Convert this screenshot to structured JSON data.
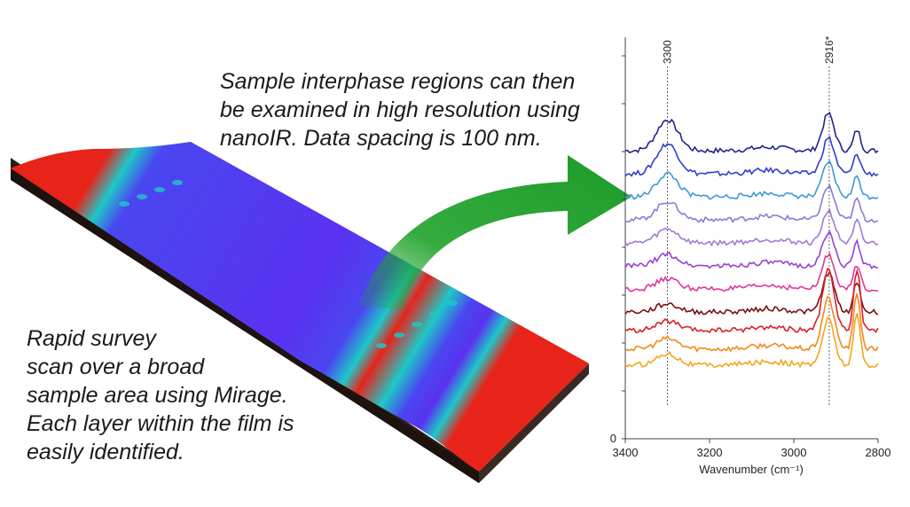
{
  "captions": {
    "top": [
      "Sample interphase regions can then",
      "be examined in high resolution using",
      "nanoIR. Data spacing is 100 nm."
    ],
    "left": [
      "Rapid survey",
      "scan over a broad",
      "sample area using Mirage.",
      "Each layer within the film is",
      "easily identified."
    ]
  },
  "colors": {
    "arrow": "#1fa22a",
    "map_red": "#e8231a",
    "map_blue": "#5a32f0",
    "map_cyan": "#1ec8c8",
    "block_side": "#2b1d17"
  },
  "chart_data": {
    "type": "line",
    "title": "",
    "xlabel": "Wavenumber (cm⁻¹)",
    "ylabel": "",
    "xlim": [
      3400,
      2800
    ],
    "x_reversed": true,
    "x_ticks": [
      "3400",
      "3200",
      "3000",
      "2800"
    ],
    "y_tick_label": "0",
    "peak_labels": [
      {
        "x": 3300,
        "label": "3300"
      },
      {
        "x": 2916,
        "label": "2916*"
      }
    ],
    "series": [
      {
        "color": "#24248c",
        "offset": 10.0,
        "peak3300": 1.35,
        "peak2916": 1.6,
        "peak2850": 0.9
      },
      {
        "color": "#2f3fc8",
        "offset": 9.0,
        "peak3300": 1.3,
        "peak2916": 1.55,
        "peak2850": 0.85
      },
      {
        "color": "#3c9ad8",
        "offset": 8.0,
        "peak3300": 1.0,
        "peak2916": 1.5,
        "peak2850": 0.9
      },
      {
        "color": "#8c7ad8",
        "offset": 7.0,
        "peak3300": 0.8,
        "peak2916": 1.45,
        "peak2850": 0.9
      },
      {
        "color": "#a07ad8",
        "offset": 6.0,
        "peak3300": 0.6,
        "peak2916": 1.4,
        "peak2850": 0.95
      },
      {
        "color": "#9a40d0",
        "offset": 5.0,
        "peak3300": 0.5,
        "peak2916": 1.45,
        "peak2850": 1.0
      },
      {
        "color": "#e0389a",
        "offset": 4.0,
        "peak3300": 0.45,
        "peak2916": 1.5,
        "peak2850": 1.05
      },
      {
        "color": "#7a1010",
        "offset": 3.0,
        "peak3300": 0.35,
        "peak2916": 1.7,
        "peak2850": 1.3
      },
      {
        "color": "#d8202a",
        "offset": 2.2,
        "peak3300": 0.4,
        "peak2916": 2.6,
        "peak2850": 2.6
      },
      {
        "color": "#f08a1a",
        "offset": 1.4,
        "peak3300": 0.45,
        "peak2916": 2.2,
        "peak2850": 2.4
      },
      {
        "color": "#f5a51a",
        "offset": 0.7,
        "peak3300": 0.5,
        "peak2916": 2.0,
        "peak2850": 2.2
      }
    ]
  }
}
